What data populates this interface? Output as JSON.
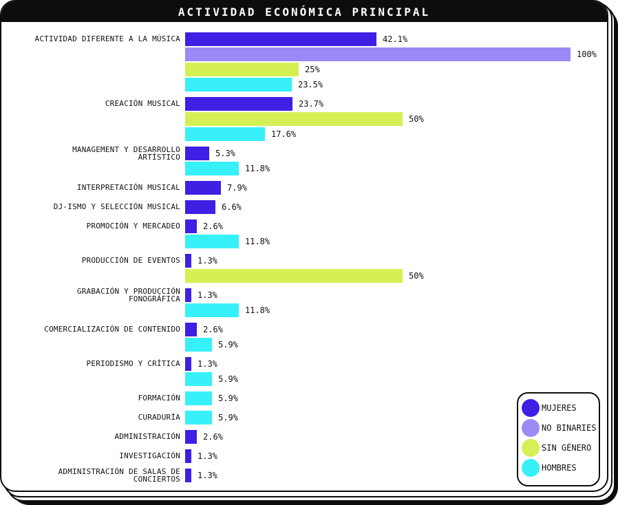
{
  "title": "ACTIVIDAD ECONÓMICA PRINCIPAL",
  "colors": {
    "ink": "#0d0d0d",
    "paper": "#ffffff",
    "mujeres": "#3d20e3",
    "no_binaries": "#9b89f5",
    "sin_genero": "#d4f054",
    "hombres": "#37f0f8"
  },
  "legend": {
    "items": [
      {
        "series": "mujeres",
        "label": "MUJERES"
      },
      {
        "series": "no_binaries",
        "label": "NO BINARIES"
      },
      {
        "series": "sin_genero",
        "label": "SIN GÉNERO"
      },
      {
        "series": "hombres",
        "label": "HOMBRES"
      }
    ]
  },
  "chart_data": {
    "type": "bar",
    "orientation": "horizontal",
    "title": "ACTIVIDAD ECONÓMICA PRINCIPAL",
    "unit": "%",
    "xlim": [
      0,
      100
    ],
    "grid": false,
    "legend_position": "bottom-right",
    "series_names": [
      "MUJERES",
      "NO BINARIES",
      "SIN GÉNERO",
      "HOMBRES"
    ],
    "groups": [
      {
        "category": "ACTIVIDAD DIFERENTE A LA MÚSICA",
        "bars": [
          {
            "series": "mujeres",
            "value": 42.1,
            "label": "42.1%"
          },
          {
            "series": "no_binaries",
            "value": 100,
            "label": "100%"
          },
          {
            "series": "sin_genero",
            "value": 25,
            "label": "25%"
          },
          {
            "series": "hombres",
            "value": 23.5,
            "label": "23.5%"
          }
        ]
      },
      {
        "category": "CREACIÓN MUSICAL",
        "bars": [
          {
            "series": "mujeres",
            "value": 23.7,
            "label": "23.7%"
          },
          {
            "series": "sin_genero",
            "value": 50,
            "label": "50%"
          },
          {
            "series": "hombres",
            "value": 17.6,
            "label": "17.6%"
          }
        ]
      },
      {
        "category": "MANAGEMENT Y DESARROLLO\nARTÍSTICO",
        "bars": [
          {
            "series": "mujeres",
            "value": 5.3,
            "label": "5.3%"
          },
          {
            "series": "hombres",
            "value": 11.8,
            "label": "11.8%"
          }
        ]
      },
      {
        "category": "INTERPRETACIÓN MUSICAL",
        "bars": [
          {
            "series": "mujeres",
            "value": 7.9,
            "label": "7.9%"
          }
        ]
      },
      {
        "category": "DJ-ISMO Y SELECCIÓN MUSICAL",
        "bars": [
          {
            "series": "mujeres",
            "value": 6.6,
            "label": "6.6%"
          }
        ]
      },
      {
        "category": "PROMOCIÓN Y MERCADEO",
        "bars": [
          {
            "series": "mujeres",
            "value": 2.6,
            "label": "2.6%"
          },
          {
            "series": "hombres",
            "value": 11.8,
            "label": "11.8%"
          }
        ]
      },
      {
        "category": "PRODUCCIÓN DE EVENTOS",
        "bars": [
          {
            "series": "mujeres",
            "value": 1.3,
            "label": "1.3%"
          },
          {
            "series": "sin_genero",
            "value": 50,
            "label": "50%"
          }
        ]
      },
      {
        "category": "GRABACIÓN Y PRODUCCIÓN\nFONOGRÁFICA",
        "bars": [
          {
            "series": "mujeres",
            "value": 1.3,
            "label": "1.3%"
          },
          {
            "series": "hombres",
            "value": 11.8,
            "label": "11.8%"
          }
        ]
      },
      {
        "category": "COMERCIALIZACIÓN DE CONTENIDO",
        "bars": [
          {
            "series": "mujeres",
            "value": 2.6,
            "label": "2.6%"
          },
          {
            "series": "hombres",
            "value": 5.9,
            "label": "5.9%"
          }
        ]
      },
      {
        "category": "PERIODISMO Y CRÍTICA",
        "bars": [
          {
            "series": "mujeres",
            "value": 1.3,
            "label": "1.3%"
          },
          {
            "series": "hombres",
            "value": 5.9,
            "label": "5.9%"
          }
        ]
      },
      {
        "category": "FORMACIÓN",
        "bars": [
          {
            "series": "hombres",
            "value": 5.9,
            "label": "5.9%"
          }
        ]
      },
      {
        "category": "CURADURÍA",
        "bars": [
          {
            "series": "hombres",
            "value": 5.9,
            "label": "5.9%"
          }
        ]
      },
      {
        "category": "ADMINISTRACIÓN",
        "bars": [
          {
            "series": "mujeres",
            "value": 2.6,
            "label": "2.6%"
          }
        ]
      },
      {
        "category": "INVESTIGACIÓN",
        "bars": [
          {
            "series": "mujeres",
            "value": 1.3,
            "label": "1.3%"
          }
        ]
      },
      {
        "category": "ADMINISTRACIÓN DE SALAS DE\nCONCIERTOS",
        "bars": [
          {
            "series": "mujeres",
            "value": 1.3,
            "label": "1.3%"
          }
        ]
      }
    ]
  }
}
